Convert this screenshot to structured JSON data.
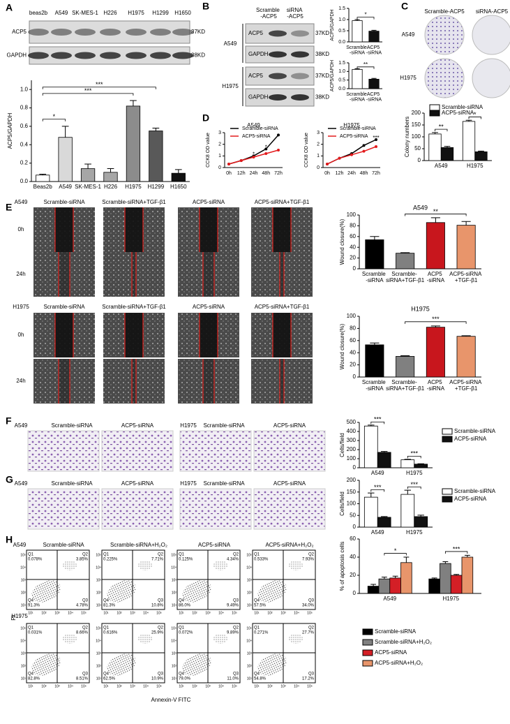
{
  "figure": {
    "panel_letters": [
      "A",
      "B",
      "C",
      "D",
      "E",
      "F",
      "G",
      "H"
    ],
    "A_blot": {
      "lanes": [
        "beas2b",
        "A549",
        "SK-MES-1",
        "H226",
        "H1975",
        "H1299",
        "H1650"
      ],
      "rows": [
        "ACP5",
        "GAPDH"
      ],
      "sizes": [
        "37KD",
        "38KD"
      ]
    },
    "B_blot": {
      "conditions": [
        "Scramble -ACP5",
        "siRNA -ACP5"
      ],
      "cells": [
        "A549",
        "H1975"
      ],
      "rows": [
        "ACP5",
        "GAPDH"
      ],
      "sizes": [
        "37KD",
        "38KD"
      ]
    },
    "C_images": {
      "conditions": [
        "Scramble-ACP5",
        "siRNA-ACP5"
      ],
      "cells": [
        "A549",
        "H1975"
      ]
    },
    "E_images": {
      "conditions": [
        "Scramble-siRNA",
        "Scramble-siRNA+TGF-β1",
        "ACP5-siRNA",
        "ACP5-siRNA+TGF-β1"
      ],
      "cells": [
        "A549",
        "H1975"
      ],
      "times": [
        "0h",
        "24h"
      ]
    },
    "F_images": {
      "conditions": [
        "Scramble-siRNA",
        "ACP5-siRNA"
      ],
      "cells": [
        "A549",
        "H1975"
      ]
    },
    "G_images": {
      "conditions": [
        "Scramble-siRNA",
        "ACP5-siRNA"
      ],
      "cells": [
        "A549",
        "H1975"
      ]
    },
    "H_flow": {
      "conditions": [
        "Scramble-siRNA",
        "Scramble-siRNA+H₂O₂",
        "ACP5-siRNA",
        "ACP5-siRNA+H₂O₂"
      ],
      "cells": [
        "A549",
        "H1975"
      ],
      "y_label": "PI",
      "x_label": "Annexin-V FITC",
      "axis_ticks": [
        "10¹",
        "10²",
        "10³",
        "10⁴",
        "10⁵"
      ],
      "quadrants": [
        "Q1",
        "Q2",
        "Q3",
        "Q4"
      ],
      "percentages": [
        [
          [
            "0.078%",
            "3.85%",
            "4.78%",
            "91.3%"
          ],
          [
            "0.225%",
            "7.71%",
            "10.8%",
            "81.3%"
          ],
          [
            "0.125%",
            "4.34%",
            "9.49%",
            "86.0%"
          ],
          [
            "0.533%",
            "7.93%",
            "34.0%",
            "57.5%"
          ]
        ],
        [
          [
            "0.031%",
            "8.66%",
            "8.51%",
            "82.8%"
          ],
          [
            "0.616%",
            "25.9%",
            "10.9%",
            "62.5%"
          ],
          [
            "0.072%",
            "9.89%",
            "11.0%",
            "79.0%"
          ],
          [
            "0.271%",
            "27.7%",
            "17.2%",
            "54.8%"
          ]
        ]
      ]
    }
  },
  "chart_data": [
    {
      "type": "bar",
      "y_label": "ACP5/GAPDH",
      "categories": [
        "Beas2b",
        "A549",
        "SK-MES-1",
        "H226",
        "H1975",
        "H1299",
        "H1650"
      ],
      "values": [
        0.07,
        0.48,
        0.14,
        0.1,
        0.82,
        0.55,
        0.09
      ],
      "errors": [
        0.01,
        0.12,
        0.05,
        0.04,
        0.06,
        0.03,
        0.04
      ],
      "colors": [
        "#ffffff",
        "#d9d9d9",
        "#a6a6a6",
        "#a6a6a6",
        "#8c8c8c",
        "#595959",
        "#111111"
      ],
      "ylim": [
        0,
        1.1
      ],
      "yticks": [
        {
          "value": 0,
          "label": "0.0"
        },
        {
          "value": 0.2,
          "label": "0.2"
        },
        {
          "value": 0.4,
          "label": "0.4"
        },
        {
          "value": 0.6,
          "label": "0.6"
        },
        {
          "value": 0.8,
          "label": "0.8"
        },
        {
          "value": 1,
          "label": "1.0"
        }
      ],
      "annotations": [
        {
          "label": "*",
          "from": "Beas2b",
          "to": "A549"
        },
        {
          "label": "***",
          "from": "Beas2b",
          "to": "H1975"
        },
        {
          "label": "***",
          "from": "Beas2b",
          "to": "H1299"
        }
      ]
    },
    {
      "type": "bar",
      "y_label": "ACP5/GAPDH",
      "categories": [
        "Scramble -siRNA",
        "ACP5 -siRNA"
      ],
      "values": [
        0.95,
        0.48
      ],
      "errors": [
        0.05,
        0.04
      ],
      "colors": [
        "#ffffff",
        "#111111"
      ],
      "ylim": [
        0,
        1.5
      ],
      "yticks": [
        {
          "value": 0,
          "label": "0.0"
        },
        {
          "value": 0.5,
          "label": "0.5"
        },
        {
          "value": 1,
          "label": "1.0"
        },
        {
          "value": 1.5,
          "label": "1.5"
        }
      ],
      "annotations": [
        {
          "label": "*",
          "from": "Scramble -siRNA",
          "to": "ACP5 -siRNA"
        }
      ]
    },
    {
      "type": "bar",
      "y_label": "ACP5/GAPDH",
      "categories": [
        "Scramble -siRNA",
        "ACP5 -siRNA"
      ],
      "values": [
        1.12,
        0.55
      ],
      "errors": [
        0.04,
        0.05
      ],
      "colors": [
        "#ffffff",
        "#111111"
      ],
      "ylim": [
        0,
        1.5
      ],
      "yticks": [
        {
          "value": 0,
          "label": "0.0"
        },
        {
          "value": 0.5,
          "label": "0.5"
        },
        {
          "value": 1,
          "label": "1.0"
        },
        {
          "value": 1.5,
          "label": "1.5"
        }
      ],
      "annotations": [
        {
          "label": "**",
          "from": "Scramble -siRNA",
          "to": "ACP5 -siRNA"
        }
      ]
    },
    {
      "type": "bar",
      "y_label": "Colony numbers",
      "categories": [
        "A549",
        "H1975"
      ],
      "series": [
        {
          "name": "Scramble-siRNA",
          "color": "#ffffff",
          "values": [
            112,
            165
          ],
          "errors": [
            6,
            5
          ]
        },
        {
          "name": "ACP5-siRNA",
          "color": "#111111",
          "values": [
            55,
            37
          ],
          "errors": [
            5,
            3
          ]
        }
      ],
      "ylim": [
        0,
        200
      ],
      "yticks": [
        0,
        50,
        100,
        150,
        200
      ],
      "annotations": [
        {
          "label": "**",
          "category": "A549",
          "from": "Scramble-siRNA",
          "to": "ACP5-siRNA"
        },
        {
          "label": "*",
          "category": "H1975",
          "from": "Scramble-siRNA",
          "to": "ACP5-siRNA"
        }
      ]
    },
    {
      "type": "line",
      "title": "A549",
      "y_label": "CCK8 OD value",
      "categories": [
        "0h",
        "12h",
        "24h",
        "48h",
        "72h"
      ],
      "series": [
        {
          "name": "Scramble-siRNA",
          "color": "#000000",
          "values": [
            0.3,
            0.6,
            1,
            1.6,
            2.8
          ]
        },
        {
          "name": "ACP5-siRNA",
          "color": "#e31a1c",
          "values": [
            0.3,
            0.6,
            0.9,
            1.2,
            1.5
          ]
        }
      ],
      "ylim": [
        0,
        3
      ],
      "yticks": [
        0,
        1,
        2,
        3
      ],
      "annotations": [
        {
          "label": "*",
          "category": "24h"
        },
        {
          "label": "*",
          "category": "48h"
        }
      ]
    },
    {
      "type": "line",
      "title": "H1975",
      "y_label": "CCK8 OD value",
      "categories": [
        "0h",
        "12h",
        "24h",
        "48h",
        "72h"
      ],
      "series": [
        {
          "name": "Scramble-siRNA",
          "color": "#000000",
          "values": [
            0.3,
            0.8,
            1.2,
            1.9,
            2.4
          ]
        },
        {
          "name": "ACP5-siRNA",
          "color": "#e31a1c",
          "values": [
            0.3,
            0.8,
            1.1,
            1.4,
            1.8
          ]
        }
      ],
      "ylim": [
        0,
        3
      ],
      "yticks": [
        0,
        1,
        2,
        3
      ],
      "annotations": [
        {
          "label": "***",
          "category": "72h"
        }
      ]
    },
    {
      "type": "bar",
      "title": "A549",
      "y_label": "Wound closure(%)",
      "categories": [
        "Scramble -siRNA",
        "Scramble- siRNA+TGF-β1",
        "ACP5 -siRNA",
        "ACP5-siRNA +TGF-β1"
      ],
      "values": [
        54,
        29,
        86,
        81
      ],
      "errors": [
        6,
        1,
        9,
        7
      ],
      "colors": [
        "#000000",
        "#808080",
        "#c8161d",
        "#e8956b"
      ],
      "ylim": [
        0,
        100
      ],
      "yticks": [
        0,
        20,
        40,
        60,
        80,
        100
      ],
      "annotations": [
        {
          "label": "**",
          "from": "Scramble- siRNA+TGF-β1",
          "to": "ACP5-siRNA +TGF-β1"
        }
      ]
    },
    {
      "type": "bar",
      "title": "H1975",
      "y_label": "Wound closure(%)",
      "categories": [
        "Scramble -siRNA",
        "Scramble- siRNA+TGF-β1",
        "ACP5 -siRNA",
        "ACP5-siRNA +TGF-β1"
      ],
      "values": [
        53,
        34,
        82,
        67
      ],
      "errors": [
        3,
        1,
        2,
        1
      ],
      "colors": [
        "#000000",
        "#808080",
        "#c8161d",
        "#e8956b"
      ],
      "ylim": [
        0,
        100
      ],
      "yticks": [
        0,
        20,
        40,
        60,
        80,
        100
      ],
      "annotations": [
        {
          "label": "***",
          "from": "Scramble- siRNA+TGF-β1",
          "to": "ACP5-siRNA +TGF-β1"
        }
      ]
    },
    {
      "type": "bar",
      "y_label": "Cells/field",
      "categories": [
        "A549",
        "H1975"
      ],
      "series": [
        {
          "name": "Scramble-siRNA",
          "color": "#ffffff",
          "values": [
            460,
            88
          ],
          "errors": [
            10,
            5
          ]
        },
        {
          "name": "ACP5-siRNA",
          "color": "#111111",
          "values": [
            170,
            40
          ],
          "errors": [
            10,
            4
          ]
        }
      ],
      "ylim": [
        0,
        500
      ],
      "yticks": [
        0,
        100,
        200,
        300,
        400,
        500
      ],
      "annotations": [
        {
          "label": "***",
          "category": "A549",
          "from": "Scramble-siRNA",
          "to": "ACP5-siRNA"
        },
        {
          "label": "***",
          "category": "H1975",
          "from": "Scramble-siRNA",
          "to": "ACP5-siRNA"
        }
      ]
    },
    {
      "type": "bar",
      "y_label": "Cells/field",
      "categories": [
        "A549",
        "H1975"
      ],
      "series": [
        {
          "name": "Scramble-siRNA",
          "color": "#ffffff",
          "values": [
            128,
            140
          ],
          "errors": [
            18,
            18
          ]
        },
        {
          "name": "ACP5-siRNA",
          "color": "#111111",
          "values": [
            42,
            45
          ],
          "errors": [
            3,
            6
          ]
        }
      ],
      "ylim": [
        0,
        200
      ],
      "yticks": [
        0,
        50,
        100,
        150,
        200
      ],
      "annotations": [
        {
          "label": "***",
          "category": "A549",
          "from": "Scramble-siRNA",
          "to": "ACP5-siRNA"
        },
        {
          "label": "***",
          "category": "H1975",
          "from": "Scramble-siRNA",
          "to": "ACP5-siRNA"
        }
      ]
    },
    {
      "type": "bar",
      "y_label": "% of apoptosis cells",
      "categories": [
        "A549",
        "H1975"
      ],
      "series": [
        {
          "name": "Scramble-siRNA",
          "color": "#000000",
          "values": [
            8,
            16
          ],
          "errors": [
            2,
            1
          ]
        },
        {
          "name": "Scramble-siRNA+H₂O₂",
          "color": "#808080",
          "values": [
            16,
            33
          ],
          "errors": [
            2,
            2
          ]
        },
        {
          "name": "ACP5-siRNA",
          "color": "#d41f26",
          "values": [
            17,
            20
          ],
          "errors": [
            2,
            1
          ]
        },
        {
          "name": "ACP5-siRNA+H₂O₂",
          "color": "#e8956b",
          "values": [
            34,
            40
          ],
          "errors": [
            6,
            2
          ]
        }
      ],
      "ylim": [
        0,
        60
      ],
      "yticks": [
        0,
        20,
        40,
        60
      ],
      "annotations": [
        {
          "label": "*",
          "category": "A549",
          "from": "Scramble-siRNA+H₂O₂",
          "to": "ACP5-siRNA+H₂O₂"
        },
        {
          "label": "***",
          "category": "H1975",
          "from": "Scramble-siRNA+H₂O₂",
          "to": "ACP5-siRNA+H₂O₂"
        }
      ]
    }
  ]
}
